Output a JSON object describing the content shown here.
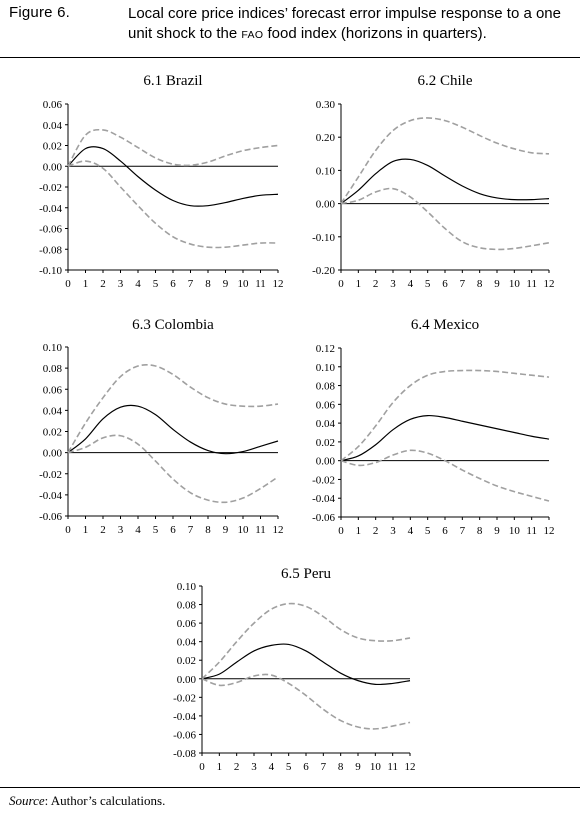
{
  "figure": {
    "label": "Figure 6.",
    "title_part1": "Local core price indices’ forecast error impulse response to a one unit shock to the ",
    "title_smallcaps": "FAO",
    "title_part2": " food index (horizons in quarters)."
  },
  "source": {
    "label": "Source",
    "text": ": Author’s calculations."
  },
  "colors": {
    "response": "#000000",
    "bands": "#a0a0a0"
  },
  "chart_data": [
    {
      "type": "line",
      "title": "6.1 Brazil",
      "x": [
        0,
        1,
        2,
        3,
        4,
        5,
        6,
        7,
        8,
        9,
        10,
        11,
        12
      ],
      "ylim": [
        -0.1,
        0.06
      ],
      "yticks": [
        "0.06",
        "0.04",
        "0.02",
        "0.00",
        "-0.02",
        "-0.04",
        "-0.06",
        "-0.08",
        "-0.10"
      ],
      "xticks": [
        "0",
        "1",
        "2",
        "3",
        "4",
        "5",
        "6",
        "7",
        "8",
        "9",
        "10",
        "11",
        "12"
      ],
      "series": [
        {
          "role": "response",
          "style": "solid",
          "values": [
            0.0,
            0.017,
            0.017,
            0.005,
            -0.01,
            -0.023,
            -0.033,
            -0.038,
            -0.038,
            -0.035,
            -0.031,
            -0.028,
            -0.027
          ]
        },
        {
          "role": "upper",
          "style": "dashed",
          "values": [
            0.0,
            0.03,
            0.035,
            0.028,
            0.018,
            0.008,
            0.002,
            0.001,
            0.004,
            0.01,
            0.015,
            0.018,
            0.02
          ]
        },
        {
          "role": "lower",
          "style": "dashed",
          "values": [
            0.0,
            0.005,
            -0.002,
            -0.02,
            -0.038,
            -0.055,
            -0.068,
            -0.075,
            -0.078,
            -0.078,
            -0.076,
            -0.074,
            -0.074
          ]
        }
      ]
    },
    {
      "type": "line",
      "title": "6.2 Chile",
      "x": [
        0,
        1,
        2,
        3,
        4,
        5,
        6,
        7,
        8,
        9,
        10,
        11,
        12
      ],
      "ylim": [
        -0.2,
        0.3
      ],
      "yticks": [
        "0.30",
        "0.20",
        "0.10",
        "0.00",
        "-0.10",
        "-0.20"
      ],
      "xticks": [
        "0",
        "1",
        "2",
        "3",
        "4",
        "5",
        "6",
        "7",
        "8",
        "9",
        "10",
        "11",
        "12"
      ],
      "series": [
        {
          "role": "response",
          "style": "solid",
          "values": [
            0.0,
            0.04,
            0.09,
            0.127,
            0.133,
            0.115,
            0.083,
            0.053,
            0.03,
            0.017,
            0.012,
            0.012,
            0.015
          ]
        },
        {
          "role": "upper",
          "style": "dashed",
          "values": [
            0.0,
            0.08,
            0.16,
            0.22,
            0.25,
            0.258,
            0.25,
            0.23,
            0.205,
            0.182,
            0.165,
            0.153,
            0.15
          ]
        },
        {
          "role": "lower",
          "style": "dashed",
          "values": [
            0.0,
            0.01,
            0.035,
            0.045,
            0.02,
            -0.025,
            -0.075,
            -0.115,
            -0.133,
            -0.138,
            -0.135,
            -0.127,
            -0.118
          ]
        }
      ]
    },
    {
      "type": "line",
      "title": "6.3 Colombia",
      "x": [
        0,
        1,
        2,
        3,
        4,
        5,
        6,
        7,
        8,
        9,
        10,
        11,
        12
      ],
      "ylim": [
        -0.06,
        0.1
      ],
      "yticks": [
        "0.10",
        "0.08",
        "0.06",
        "0.04",
        "0.02",
        "0.00",
        "-0.02",
        "-0.04",
        "-0.06"
      ],
      "xticks": [
        "0",
        "1",
        "2",
        "3",
        "4",
        "5",
        "6",
        "7",
        "8",
        "9",
        "10",
        "11",
        "12"
      ],
      "series": [
        {
          "role": "response",
          "style": "solid",
          "values": [
            0.0,
            0.013,
            0.032,
            0.043,
            0.044,
            0.036,
            0.022,
            0.01,
            0.002,
            -0.001,
            0.001,
            0.006,
            0.011
          ]
        },
        {
          "role": "upper",
          "style": "dashed",
          "values": [
            0.0,
            0.028,
            0.052,
            0.072,
            0.082,
            0.082,
            0.074,
            0.062,
            0.052,
            0.046,
            0.044,
            0.044,
            0.046
          ]
        },
        {
          "role": "lower",
          "style": "dashed",
          "values": [
            0.0,
            0.005,
            0.014,
            0.016,
            0.008,
            -0.008,
            -0.025,
            -0.038,
            -0.045,
            -0.047,
            -0.043,
            -0.034,
            -0.023
          ]
        }
      ]
    },
    {
      "type": "line",
      "title": "6.4 Mexico",
      "x": [
        0,
        1,
        2,
        3,
        4,
        5,
        6,
        7,
        8,
        9,
        10,
        11,
        12
      ],
      "ylim": [
        -0.06,
        0.12
      ],
      "yticks": [
        "0.12",
        "0.10",
        "0.08",
        "0.06",
        "0.04",
        "0.02",
        "0.00",
        "-0.02",
        "-0.04",
        "-0.06"
      ],
      "xticks": [
        "0",
        "1",
        "2",
        "3",
        "4",
        "5",
        "6",
        "7",
        "8",
        "9",
        "10",
        "11",
        "12"
      ],
      "series": [
        {
          "role": "response",
          "style": "solid",
          "values": [
            0.0,
            0.005,
            0.017,
            0.033,
            0.044,
            0.048,
            0.046,
            0.042,
            0.038,
            0.034,
            0.03,
            0.026,
            0.023
          ]
        },
        {
          "role": "upper",
          "style": "dashed",
          "values": [
            0.0,
            0.015,
            0.037,
            0.062,
            0.08,
            0.091,
            0.095,
            0.096,
            0.096,
            0.095,
            0.093,
            0.091,
            0.089
          ]
        },
        {
          "role": "lower",
          "style": "dashed",
          "values": [
            0.0,
            -0.005,
            -0.002,
            0.006,
            0.011,
            0.008,
            0.0,
            -0.01,
            -0.019,
            -0.027,
            -0.033,
            -0.038,
            -0.043
          ]
        }
      ]
    },
    {
      "type": "line",
      "title": "6.5 Peru",
      "x": [
        0,
        1,
        2,
        3,
        4,
        5,
        6,
        7,
        8,
        9,
        10,
        11,
        12
      ],
      "ylim": [
        -0.08,
        0.1
      ],
      "yticks": [
        "0.10",
        "0.08",
        "0.06",
        "0.04",
        "0.02",
        "0.00",
        "-0.02",
        "-0.04",
        "-0.06",
        "-0.08"
      ],
      "xticks": [
        "0",
        "1",
        "2",
        "3",
        "4",
        "5",
        "6",
        "7",
        "8",
        "9",
        "10",
        "11",
        "12"
      ],
      "series": [
        {
          "role": "response",
          "style": "solid",
          "values": [
            0.0,
            0.005,
            0.018,
            0.03,
            0.036,
            0.037,
            0.03,
            0.018,
            0.006,
            -0.002,
            -0.006,
            -0.005,
            -0.002
          ]
        },
        {
          "role": "upper",
          "style": "dashed",
          "values": [
            0.0,
            0.018,
            0.04,
            0.06,
            0.075,
            0.081,
            0.078,
            0.067,
            0.053,
            0.044,
            0.041,
            0.041,
            0.044
          ]
        },
        {
          "role": "lower",
          "style": "dashed",
          "values": [
            0.0,
            -0.007,
            -0.004,
            0.003,
            0.004,
            -0.005,
            -0.018,
            -0.033,
            -0.045,
            -0.052,
            -0.054,
            -0.051,
            -0.047
          ]
        }
      ]
    }
  ]
}
